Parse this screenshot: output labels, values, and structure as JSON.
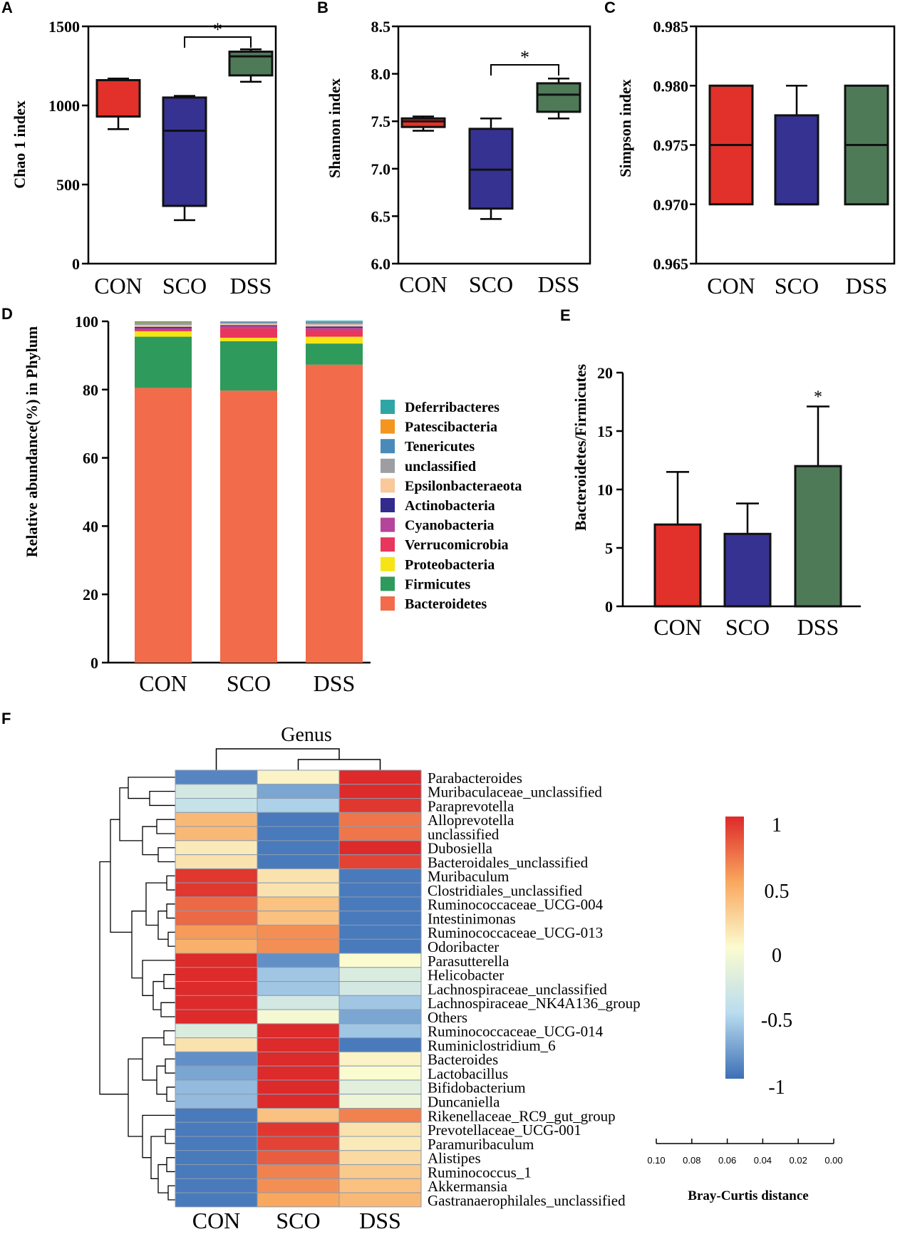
{
  "figure": {
    "panel_letters": [
      "A",
      "B",
      "C",
      "D",
      "E",
      "F"
    ]
  },
  "colors": {
    "CON": "#e1312a",
    "SCO": "#363292",
    "DSS": "#4f7a58"
  },
  "chart_data": [
    {
      "panel": "A",
      "type": "box",
      "ylabel": "Chao 1 index",
      "ylim": [
        0,
        1500
      ],
      "yticks": [
        0,
        500,
        1000,
        1500
      ],
      "categories": [
        "CON",
        "SCO",
        "DSS"
      ],
      "boxes": [
        {
          "min": 850,
          "q1": 930,
          "median": 1160,
          "q3": 1160,
          "max": 1170
        },
        {
          "min": 275,
          "q1": 365,
          "median": 840,
          "q3": 1050,
          "max": 1060
        },
        {
          "min": 1150,
          "q1": 1190,
          "median": 1310,
          "q3": 1340,
          "max": 1355
        }
      ],
      "significance": {
        "from": "SCO",
        "to": "DSS",
        "label": "*"
      }
    },
    {
      "panel": "B",
      "type": "box",
      "ylabel": "Shannon index",
      "ylim": [
        6.0,
        8.5
      ],
      "yticks": [
        "6.0",
        "6.5",
        "7.0",
        "7.5",
        "8.0",
        "8.5"
      ],
      "categories": [
        "CON",
        "SCO",
        "DSS"
      ],
      "boxes": [
        {
          "min": 7.4,
          "q1": 7.44,
          "median": 7.5,
          "q3": 7.53,
          "max": 7.55
        },
        {
          "min": 6.47,
          "q1": 6.58,
          "median": 6.99,
          "q3": 7.42,
          "max": 7.53
        },
        {
          "min": 7.53,
          "q1": 7.6,
          "median": 7.78,
          "q3": 7.9,
          "max": 7.95
        }
      ],
      "significance": {
        "from": "SCO",
        "to": "DSS",
        "label": "*"
      }
    },
    {
      "panel": "C",
      "type": "box",
      "ylabel": "Simpson index",
      "ylim": [
        0.965,
        0.985
      ],
      "yticks": [
        "0.965",
        "0.970",
        "0.975",
        "0.980",
        "0.985"
      ],
      "categories": [
        "CON",
        "SCO",
        "DSS"
      ],
      "boxes": [
        {
          "min": 0.97,
          "q1": 0.97,
          "median": 0.975,
          "q3": 0.98,
          "max": 0.98
        },
        {
          "min": 0.97,
          "q1": 0.97,
          "median": 0.97,
          "q3": 0.9775,
          "max": 0.98
        },
        {
          "min": 0.97,
          "q1": 0.97,
          "median": 0.975,
          "q3": 0.98,
          "max": 0.98
        }
      ]
    },
    {
      "panel": "D",
      "type": "bar",
      "stacked": true,
      "ylabel": "Relative abundance(%) in Phylum",
      "ylim": [
        0,
        100
      ],
      "yticks": [
        0,
        20,
        40,
        60,
        80,
        100
      ],
      "categories": [
        "CON",
        "SCO",
        "DSS"
      ],
      "series": [
        {
          "name": "Bacteroidetes",
          "color": "#f26b4a",
          "values": [
            80.5,
            79.7,
            87.3
          ]
        },
        {
          "name": "Firmicutes",
          "color": "#2e9a5c",
          "values": [
            15.0,
            14.5,
            6.2
          ]
        },
        {
          "name": "Proteobacteria",
          "color": "#f7e415",
          "values": [
            1.6,
            1.0,
            2.0
          ]
        },
        {
          "name": "Verrucomicrobia",
          "color": "#e8365d",
          "values": [
            0.5,
            2.8,
            1.9
          ]
        },
        {
          "name": "Cyanobacteria",
          "color": "#b5449b",
          "values": [
            0.4,
            0.6,
            0.7
          ]
        },
        {
          "name": "Actinobacteria",
          "color": "#322a8c",
          "values": [
            0.4,
            0.3,
            0.4
          ]
        },
        {
          "name": "Epsilonbacteraeota",
          "color": "#f9c89b",
          "values": [
            0.5,
            0.4,
            0.6
          ]
        },
        {
          "name": "unclassified",
          "color": "#9c9ea1",
          "values": [
            0.4,
            0.3,
            0.4
          ]
        },
        {
          "name": "Tenericutes",
          "color": "#4a8ab9",
          "values": [
            0.2,
            0.3,
            0.3
          ]
        },
        {
          "name": "Patescibacteria",
          "color": "#f4951f",
          "values": [
            0.2,
            0.1,
            0.2
          ]
        },
        {
          "name": "Deferribacteres",
          "color": "#2ea6a6",
          "values": [
            0.3,
            0.0,
            0.2
          ]
        }
      ],
      "legend_order": [
        "Deferribacteres",
        "Patescibacteria",
        "Tenericutes",
        "unclassified",
        "Epsilonbacteraeota",
        "Actinobacteria",
        "Cyanobacteria",
        "Verrucomicrobia",
        "Proteobacteria",
        "Firmicutes",
        "Bacteroidetes"
      ],
      "legend_position": "right"
    },
    {
      "panel": "E",
      "type": "bar",
      "ylabel": "Bacteroidetes/Firmicutes",
      "ylim": [
        0,
        20
      ],
      "yticks": [
        0,
        5,
        10,
        15,
        20
      ],
      "categories": [
        "CON",
        "SCO",
        "DSS"
      ],
      "values": [
        7.0,
        6.2,
        12.0
      ],
      "errors": [
        4.5,
        2.6,
        5.1
      ],
      "significance": {
        "on": "DSS",
        "label": "*"
      }
    },
    {
      "panel": "F",
      "type": "heatmap",
      "title": "Genus",
      "columns": [
        "CON",
        "SCO",
        "DSS"
      ],
      "rows": [
        "Parabacteroides",
        "Muribaculaceae_unclassified",
        "Paraprevotella",
        "Alloprevotella",
        "unclassified",
        "Dubosiella",
        "Bacteroidales_unclassified",
        "Muribaculum",
        "Clostridiales_unclassified",
        "Ruminococcaceae_UCG-004",
        "Intestinimonas",
        "Ruminococcaceae_UCG-013",
        "Odoribacter",
        "Parasutterella",
        "Helicobacter",
        "Lachnospiraceae_unclassified",
        "Lachnospiraceae_NK4A136_group",
        "Others",
        "Ruminococcaceae_UCG-014",
        "Ruminiclostridium_6",
        "Bacteroides",
        "Lactobacillus",
        "Bifidobacterium",
        "Duncaniella",
        "Rikenellaceae_RC9_gut_group",
        "Prevotellaceae_UCG-001",
        "Paramuribaculum",
        "Alistipes",
        "Ruminococcus_1",
        "Akkermansia",
        "Gastranaerophilales_unclassified"
      ],
      "values": [
        [
          -0.9,
          0.05,
          1.0
        ],
        [
          -0.3,
          -0.75,
          1.0
        ],
        [
          -0.4,
          -0.55,
          0.95
        ],
        [
          0.4,
          -0.95,
          0.7
        ],
        [
          0.4,
          -0.95,
          0.7
        ],
        [
          0.1,
          -0.95,
          1.0
        ],
        [
          0.15,
          -0.95,
          0.9
        ],
        [
          0.95,
          0.15,
          -0.95
        ],
        [
          0.95,
          0.15,
          -0.95
        ],
        [
          0.75,
          0.35,
          -0.95
        ],
        [
          0.75,
          0.35,
          -0.95
        ],
        [
          0.55,
          0.6,
          -0.95
        ],
        [
          0.45,
          0.6,
          -0.95
        ],
        [
          1.0,
          -0.85,
          0.0
        ],
        [
          1.0,
          -0.6,
          -0.25
        ],
        [
          1.0,
          -0.6,
          -0.3
        ],
        [
          1.0,
          -0.3,
          -0.6
        ],
        [
          1.0,
          -0.05,
          -0.75
        ],
        [
          -0.25,
          1.0,
          -0.6
        ],
        [
          0.15,
          1.0,
          -0.95
        ],
        [
          -0.85,
          1.0,
          0.05
        ],
        [
          -0.75,
          1.0,
          0.0
        ],
        [
          -0.65,
          1.0,
          -0.2
        ],
        [
          -0.65,
          1.0,
          -0.1
        ],
        [
          -0.95,
          0.35,
          0.65
        ],
        [
          -0.95,
          0.95,
          0.15
        ],
        [
          -0.95,
          0.9,
          0.1
        ],
        [
          -0.95,
          0.8,
          0.2
        ],
        [
          -0.95,
          0.65,
          0.3
        ],
        [
          -0.95,
          0.6,
          0.35
        ],
        [
          -0.95,
          0.5,
          0.4
        ]
      ],
      "colorbar": {
        "ticks": [
          "1",
          "0.5",
          "0",
          "-0.5",
          "-1"
        ],
        "range": [
          -1,
          1
        ]
      },
      "distance_scale": {
        "ticks": [
          "0.10",
          "0.08",
          "0.06",
          "0.04",
          "0.02",
          "0.00"
        ],
        "label": "Bray-Curtis distance"
      }
    }
  ]
}
